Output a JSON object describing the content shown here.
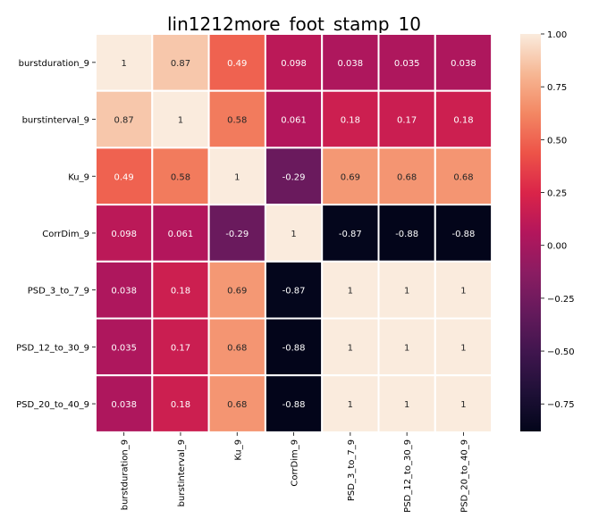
{
  "chart_data": {
    "type": "heatmap",
    "title": "lin1212more_foot_stamp_10",
    "x_labels": [
      "burstduration_9",
      "burstinterval_9",
      "Ku_9",
      "CorrDim_9",
      "PSD_3_to_7_9",
      "PSD_12_to_30_9",
      "PSD_20_to_40_9"
    ],
    "y_labels": [
      "burstduration_9",
      "burstinterval_9",
      "Ku_9",
      "CorrDim_9",
      "PSD_3_to_7_9",
      "PSD_12_to_30_9",
      "PSD_20_to_40_9"
    ],
    "values": [
      [
        1,
        0.87,
        0.49,
        0.098,
        0.038,
        0.035,
        0.038
      ],
      [
        0.87,
        1,
        0.58,
        0.061,
        0.18,
        0.17,
        0.18
      ],
      [
        0.49,
        0.58,
        1,
        -0.29,
        0.69,
        0.68,
        0.68
      ],
      [
        0.098,
        0.061,
        -0.29,
        1,
        -0.87,
        -0.88,
        -0.88
      ],
      [
        0.038,
        0.18,
        0.69,
        -0.87,
        1,
        1,
        1
      ],
      [
        0.035,
        0.17,
        0.68,
        -0.88,
        1,
        1,
        1
      ],
      [
        0.038,
        0.18,
        0.68,
        -0.88,
        1,
        1,
        1
      ]
    ],
    "cell_labels": [
      [
        "1",
        "0.87",
        "0.49",
        "0.098",
        "0.038",
        "0.035",
        "0.038"
      ],
      [
        "0.87",
        "1",
        "0.58",
        "0.061",
        "0.18",
        "0.17",
        "0.18"
      ],
      [
        "0.49",
        "0.58",
        "1",
        "-0.29",
        "0.69",
        "0.68",
        "0.68"
      ],
      [
        "0.098",
        "0.061",
        "-0.29",
        "1",
        "-0.87",
        "-0.88",
        "-0.88"
      ],
      [
        "0.038",
        "0.18",
        "0.69",
        "-0.87",
        "1",
        "1",
        "1"
      ],
      [
        "0.035",
        "0.17",
        "0.68",
        "-0.88",
        "1",
        "1",
        "1"
      ],
      [
        "0.038",
        "0.18",
        "0.68",
        "-0.88",
        "1",
        "1",
        "1"
      ]
    ],
    "colorbar": {
      "range": [
        -0.88,
        1.0
      ],
      "ticks": [
        1.0,
        0.75,
        0.5,
        0.25,
        0.0,
        -0.25,
        -0.5,
        -0.75
      ],
      "tick_labels": [
        "1.00",
        "0.75",
        "0.50",
        "0.25",
        "0.00",
        "−0.25",
        "−0.50",
        "−0.75"
      ],
      "colormap": "rocket"
    },
    "grid": false,
    "cell_separator_color": "#ffffff"
  }
}
